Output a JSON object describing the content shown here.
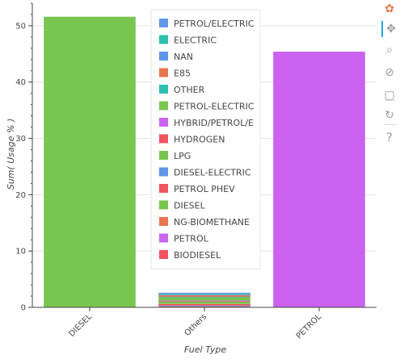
{
  "chart_data": {
    "type": "bar",
    "xlabel": "Fuel Type",
    "ylabel": "Sum( Usage % )",
    "ylim": [
      0,
      54
    ],
    "yticks": [
      0,
      10,
      20,
      30,
      40,
      50
    ],
    "grid": true,
    "legend_position": "top-center",
    "categories": [
      "DIESEL",
      "Others",
      "PETROL"
    ],
    "bars": [
      {
        "category": "DIESEL",
        "value": 51.6,
        "color": "#78c54f"
      },
      {
        "category": "PETROL",
        "value": 45.4,
        "color": "#cb62f0"
      }
    ],
    "stack": {
      "category": "Others",
      "segments": [
        {
          "name": "BIODIESEL",
          "value": 0.1,
          "color": "#f0545f"
        },
        {
          "name": "NG-BIOMETHANE",
          "value": 0.05,
          "color": "#e8764f"
        },
        {
          "name": "DIESEL-ELECTRIC",
          "value": 0.15,
          "color": "#5f96e8"
        },
        {
          "name": "PETROL PHEV",
          "value": 0.3,
          "color": "#f0545f"
        },
        {
          "name": "LPG",
          "value": 0.45,
          "color": "#78c54f"
        },
        {
          "name": "HYDROGEN",
          "value": 0.05,
          "color": "#f0545f"
        },
        {
          "name": "HYBRID/PETROL/E",
          "value": 0.1,
          "color": "#cb62f0"
        },
        {
          "name": "PETROL-ELECTRIC",
          "value": 0.6,
          "color": "#78c54f"
        },
        {
          "name": "OTHER",
          "value": 0.05,
          "color": "#2fbfae"
        },
        {
          "name": "E85",
          "value": 0.35,
          "color": "#e8764f"
        },
        {
          "name": "NAN",
          "value": 0.05,
          "color": "#5f96e8"
        },
        {
          "name": "ELECTRIC",
          "value": 0.15,
          "color": "#2fbfae"
        },
        {
          "name": "PETROL/ELECTRIC",
          "value": 0.2,
          "color": "#5f96e8"
        }
      ]
    },
    "legend": [
      {
        "label": "PETROL/ELECTRIC",
        "color": "#5f96e8"
      },
      {
        "label": "ELECTRIC",
        "color": "#2fbfae"
      },
      {
        "label": "NAN",
        "color": "#5f96e8"
      },
      {
        "label": "E85",
        "color": "#e8764f"
      },
      {
        "label": "OTHER",
        "color": "#2fbfae"
      },
      {
        "label": "PETROL-ELECTRIC",
        "color": "#78c54f"
      },
      {
        "label": "HYBRID/PETROL/E",
        "color": "#cb62f0"
      },
      {
        "label": "HYDROGEN",
        "color": "#f0545f"
      },
      {
        "label": "LPG",
        "color": "#78c54f"
      },
      {
        "label": "DIESEL-ELECTRIC",
        "color": "#5f96e8"
      },
      {
        "label": "PETROL PHEV",
        "color": "#f0545f"
      },
      {
        "label": "DIESEL",
        "color": "#78c54f"
      },
      {
        "label": "NG-BIOMETHANE",
        "color": "#e8764f"
      },
      {
        "label": "PETROL",
        "color": "#cb62f0"
      },
      {
        "label": "BIODIESEL",
        "color": "#f0545f"
      }
    ]
  },
  "toolbar": {
    "tools": [
      {
        "name": "bokeh-logo",
        "glyph": "✿",
        "color": "#e8764f"
      },
      {
        "name": "pan-tool-icon",
        "glyph": "✥"
      },
      {
        "name": "box-zoom-tool-icon",
        "glyph": "⌕"
      },
      {
        "name": "wheel-zoom-tool-icon",
        "glyph": "⊘"
      },
      {
        "name": "save-tool-icon",
        "glyph": "▢"
      },
      {
        "name": "reset-tool-icon",
        "glyph": "↻"
      },
      {
        "name": "help-tool-icon",
        "glyph": "?"
      }
    ]
  }
}
